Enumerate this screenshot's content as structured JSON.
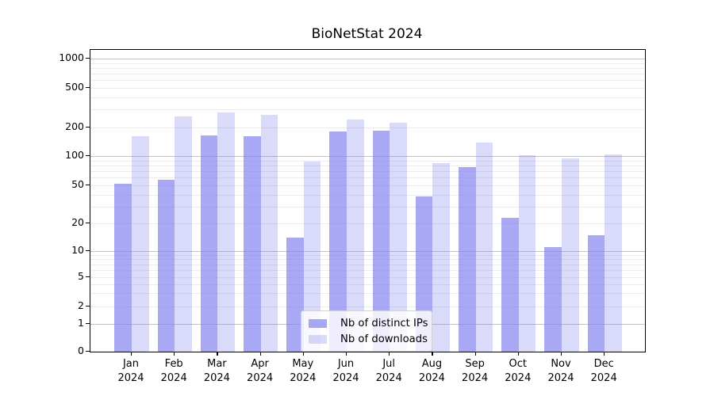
{
  "title": "BioNetStat 2024",
  "colors": {
    "ips": "rgba(123,123,240,0.66)",
    "downloads": "rgba(123,123,240,0.28)",
    "ips_flat": "#a9a9f4",
    "downloads_flat": "#dadaf9",
    "grid_major": "#c3c3c3",
    "grid_minor": "#ebebeb",
    "axis": "#000000"
  },
  "legend": {
    "items": [
      {
        "label": "Nb of distinct IPs",
        "series": 0
      },
      {
        "label": "Nb of downloads",
        "series": 1
      }
    ]
  },
  "chart_data": {
    "type": "bar",
    "title": "BioNetStat 2024",
    "categories": [
      "Jan 2024",
      "Feb 2024",
      "Mar 2024",
      "Apr 2024",
      "May 2024",
      "Jun 2024",
      "Jul 2024",
      "Aug 2024",
      "Sep 2024",
      "Oct 2024",
      "Nov 2024",
      "Dec 2024"
    ],
    "series": [
      {
        "name": "Nb of distinct IPs",
        "values": [
          52,
          57,
          163,
          160,
          14,
          180,
          184,
          38,
          77,
          23,
          11,
          15
        ]
      },
      {
        "name": "Nb of downloads",
        "values": [
          160,
          255,
          283,
          266,
          88,
          238,
          221,
          84,
          139,
          101,
          94,
          103
        ]
      }
    ],
    "xlabel": "",
    "ylabel": "",
    "yscale": "symlog",
    "yticks": [
      0,
      1,
      2,
      5,
      10,
      20,
      50,
      100,
      200,
      500,
      1000
    ],
    "ylim": [
      0,
      1300
    ],
    "grid": true,
    "legend_position": "lower center"
  }
}
